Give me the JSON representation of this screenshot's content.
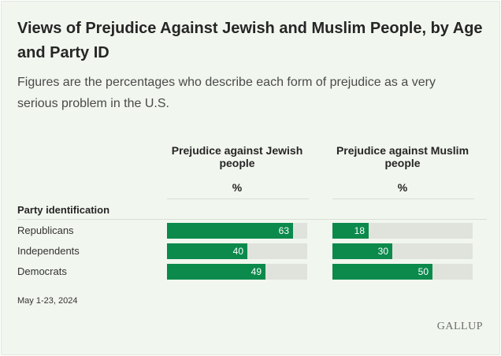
{
  "title": "Views of Prejudice Against Jewish and Muslim People, by Age and Party ID",
  "subtitle": "Figures are the percentages who describe each form of prejudice as a very serious problem in the U.S.",
  "columns": [
    {
      "label": "Prejudice against Jewish people",
      "unit": "%"
    },
    {
      "label": "Prejudice against Muslim people",
      "unit": "%"
    }
  ],
  "section_label": "Party identification",
  "source": "May 1-23, 2024",
  "logo": "GALLUP",
  "colors": {
    "bar": "#0b8a4c",
    "track": "#dfe3dc",
    "background": "#f1f6ee"
  },
  "chart_data": {
    "type": "bar",
    "orientation": "horizontal",
    "categories": [
      "Republicans",
      "Independents",
      "Democrats"
    ],
    "series": [
      {
        "name": "Prejudice against Jewish people",
        "values": [
          63,
          40,
          49
        ]
      },
      {
        "name": "Prejudice against Muslim people",
        "values": [
          18,
          30,
          50
        ]
      }
    ],
    "xlim": [
      0,
      70
    ],
    "unit": "%"
  }
}
